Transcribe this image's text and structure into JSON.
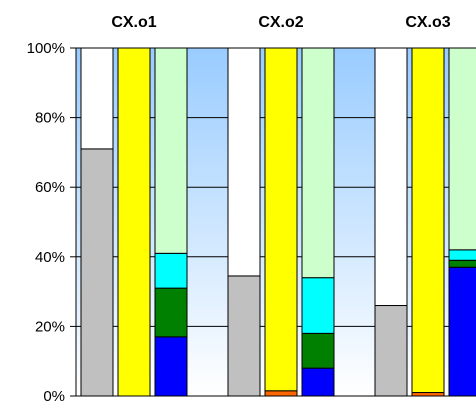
{
  "chart_data": {
    "type": "bar",
    "stacked": true,
    "normalized": true,
    "group_titles": [
      "CX.o1",
      "CX.o2",
      "CX.o3"
    ],
    "y_ticks": [
      "0%",
      "20%",
      "40%",
      "60%",
      "80%",
      "100%"
    ],
    "ylim": [
      0,
      100
    ],
    "grid": true,
    "background": "gradient sky blue to white",
    "groups": [
      {
        "title": "CX.o1",
        "bars": [
          {
            "segments": [
              {
                "value": 71,
                "color": "#c0c0c0"
              },
              {
                "value": 29,
                "color": "#ffffff"
              }
            ]
          },
          {
            "segments": [
              {
                "value": 100,
                "color": "#ffff00"
              }
            ]
          },
          {
            "segments": [
              {
                "value": 17,
                "color": "#0000ff"
              },
              {
                "value": 14,
                "color": "#008000"
              },
              {
                "value": 10,
                "color": "#00ffff"
              },
              {
                "value": 59,
                "color": "#ccffcc"
              }
            ]
          }
        ]
      },
      {
        "title": "CX.o2",
        "bars": [
          {
            "segments": [
              {
                "value": 34.5,
                "color": "#c0c0c0"
              },
              {
                "value": 65.5,
                "color": "#ffffff"
              }
            ]
          },
          {
            "segments": [
              {
                "value": 1.5,
                "color": "#ff6600"
              },
              {
                "value": 98.5,
                "color": "#ffff00"
              }
            ]
          },
          {
            "segments": [
              {
                "value": 8,
                "color": "#0000ff"
              },
              {
                "value": 10,
                "color": "#008000"
              },
              {
                "value": 16,
                "color": "#00ffff"
              },
              {
                "value": 66,
                "color": "#ccffcc"
              }
            ]
          }
        ]
      },
      {
        "title": "CX.o3",
        "bars": [
          {
            "segments": [
              {
                "value": 26,
                "color": "#c0c0c0"
              },
              {
                "value": 74,
                "color": "#ffffff"
              }
            ]
          },
          {
            "segments": [
              {
                "value": 1,
                "color": "#ff6600"
              },
              {
                "value": 99,
                "color": "#ffff00"
              }
            ]
          },
          {
            "segments": [
              {
                "value": 37,
                "color": "#0000ff"
              },
              {
                "value": 2,
                "color": "#008000"
              },
              {
                "value": 3,
                "color": "#00ffff"
              },
              {
                "value": 58,
                "color": "#ccffcc"
              }
            ]
          }
        ]
      }
    ]
  }
}
